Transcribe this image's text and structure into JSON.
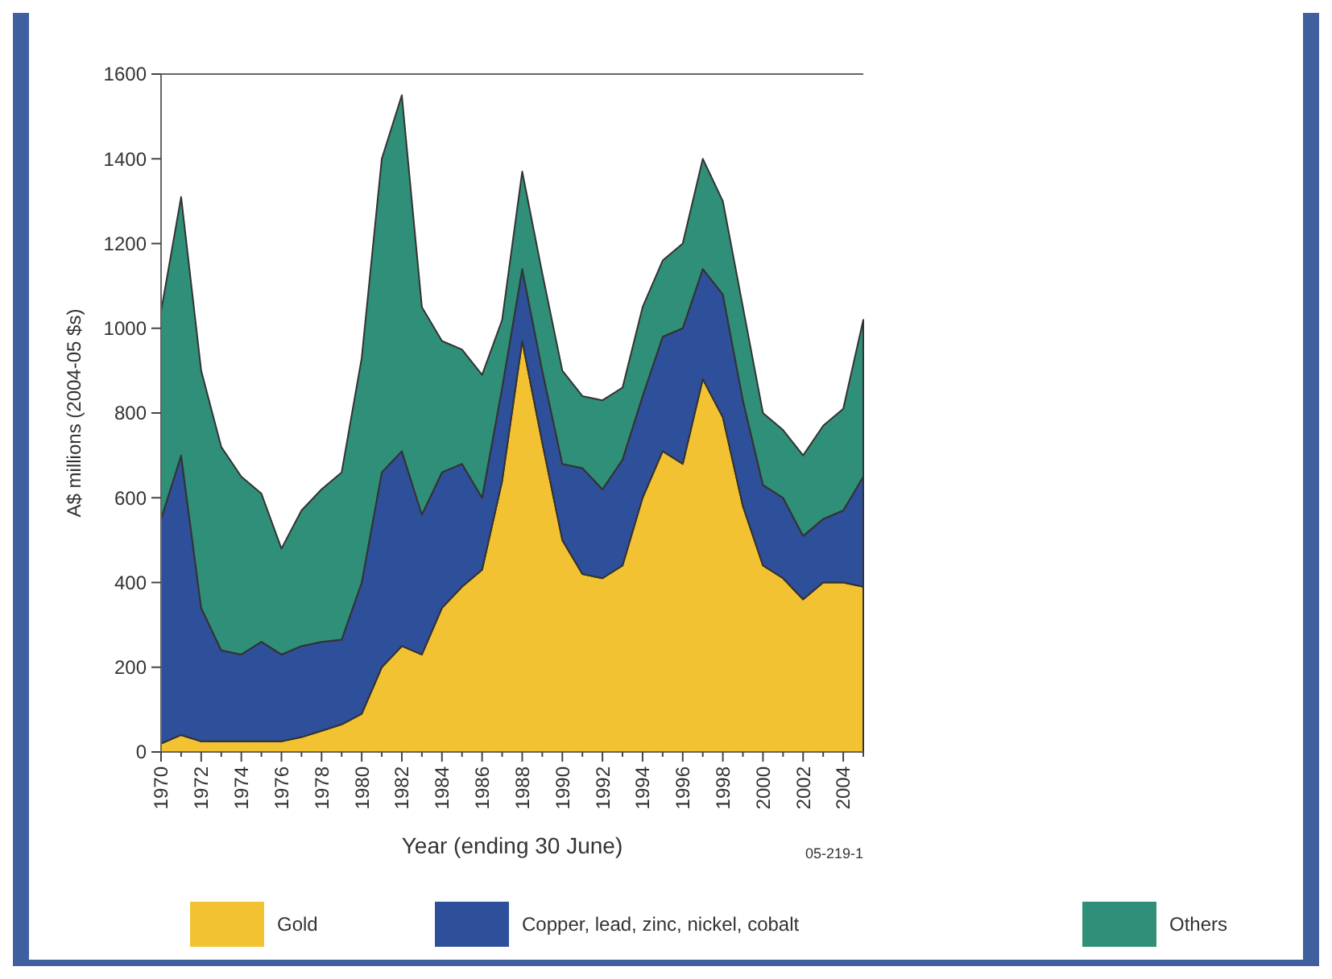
{
  "chart_data": {
    "type": "area",
    "stacked": true,
    "xlabel": "Year (ending 30 June)",
    "ylabel": "A$ millions (2004-05 $s)",
    "annotations": [
      "05-219-1"
    ],
    "x": [
      1970,
      1971,
      1972,
      1973,
      1974,
      1975,
      1976,
      1977,
      1978,
      1979,
      1980,
      1981,
      1982,
      1983,
      1984,
      1985,
      1986,
      1987,
      1988,
      1989,
      1990,
      1991,
      1992,
      1993,
      1994,
      1995,
      1996,
      1997,
      1998,
      1999,
      2000,
      2001,
      2002,
      2003,
      2004,
      2005
    ],
    "series": [
      {
        "name": "Gold",
        "color": "#f2c232",
        "values": [
          20,
          40,
          25,
          25,
          25,
          25,
          25,
          35,
          50,
          65,
          90,
          200,
          250,
          230,
          340,
          390,
          430,
          640,
          970,
          730,
          500,
          420,
          410,
          440,
          600,
          710,
          680,
          880,
          790,
          580,
          440,
          410,
          360,
          400,
          400,
          390
        ]
      },
      {
        "name": "Copper, lead, zinc, nickel, cobalt",
        "color": "#2e4f9a",
        "values": [
          530,
          660,
          315,
          215,
          205,
          235,
          205,
          215,
          210,
          200,
          310,
          460,
          460,
          330,
          320,
          290,
          170,
          220,
          170,
          170,
          180,
          250,
          210,
          250,
          240,
          270,
          320,
          260,
          290,
          250,
          190,
          190,
          150,
          150,
          170,
          260
        ]
      },
      {
        "name": "Others",
        "color": "#2f8f78",
        "values": [
          490,
          610,
          560,
          480,
          420,
          350,
          250,
          320,
          360,
          395,
          530,
          740,
          840,
          490,
          310,
          270,
          290,
          160,
          230,
          230,
          220,
          170,
          210,
          170,
          210,
          180,
          200,
          260,
          220,
          220,
          170,
          160,
          190,
          220,
          240,
          370
        ]
      }
    ],
    "xlim": [
      1970,
      2005
    ],
    "xticks": [
      1970,
      {
        "value": 1971,
        "label": null
      },
      1972,
      {
        "value": 1973,
        "label": null
      },
      1974,
      {
        "value": 1975,
        "label": null
      },
      1976,
      {
        "value": 1977,
        "label": null
      },
      1978,
      {
        "value": 1979,
        "label": null
      },
      1980,
      {
        "value": 1981,
        "label": null
      },
      1982,
      {
        "value": 1983,
        "label": null
      },
      1984,
      {
        "value": 1985,
        "label": null
      },
      1986,
      {
        "value": 1987,
        "label": null
      },
      1988,
      {
        "value": 1989,
        "label": null
      },
      1990,
      {
        "value": 1991,
        "label": null
      },
      1992,
      {
        "value": 1993,
        "label": null
      },
      1994,
      {
        "value": 1995,
        "label": null
      },
      1996,
      {
        "value": 1997,
        "label": null
      },
      1998,
      {
        "value": 1999,
        "label": null
      },
      2000,
      {
        "value": 2001,
        "label": null
      },
      2002,
      {
        "value": 2003,
        "label": null
      },
      2004,
      {
        "value": 2005,
        "label": null
      }
    ],
    "ylim": [
      0,
      1600
    ],
    "yticks": [
      0,
      200,
      400,
      600,
      800,
      1000,
      1200,
      1400,
      1600
    ],
    "grid": false,
    "legend": "bottom"
  }
}
